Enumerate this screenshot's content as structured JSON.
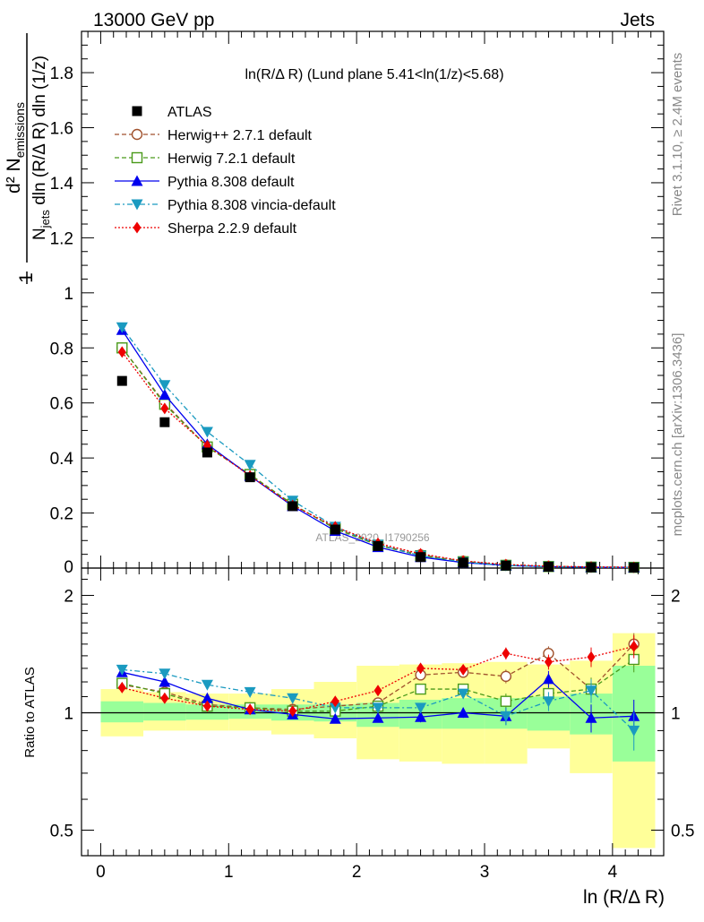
{
  "header": {
    "energy": "13000 GeV pp",
    "channel": "Jets",
    "rivet_label": "Rivet 3.1.10, ≥ 2.4M events",
    "site_label": "mcplots.cern.ch [arXiv:1306.3436]",
    "analysis_id": "ATLAS_2020_I1790256"
  },
  "chart_data": {
    "type": "scatter",
    "plot_title": "ln(R/Δ R) (Lund plane 5.41<ln(1/z)<5.68)",
    "xlabel": "ln (R/Δ R)",
    "ylabel_main": "1/N_jets d²N_emissions / dln(R/ΔR) dln(1/z)",
    "ylabel_ratio": "Ratio to ATLAS",
    "xlim": [
      -0.15,
      4.4
    ],
    "ylim_main": [
      0,
      1.95
    ],
    "ylim_ratio": [
      0.43,
      2.35
    ],
    "y_scale_ratio": "log",
    "x_ticks": [
      "0",
      "1",
      "2",
      "3",
      "4"
    ],
    "y_ticks_main": [
      "0.2",
      "0.4",
      "0.6",
      "0.8",
      "1",
      "1.2",
      "1.4",
      "1.6",
      "1.8"
    ],
    "y_ticks_ratio": [
      "0.5",
      "1",
      "2"
    ],
    "legend_position": "top-left",
    "x": [
      0.167,
      0.5,
      0.833,
      1.167,
      1.5,
      1.833,
      2.167,
      2.5,
      2.833,
      3.167,
      3.5,
      3.833,
      4.167
    ],
    "data": {
      "name": "ATLAS",
      "values": [
        0.68,
        0.53,
        0.42,
        0.33,
        0.225,
        0.14,
        0.08,
        0.04,
        0.02,
        0.009,
        0.005,
        0.003,
        0.002
      ],
      "band_inner": [
        [
          0.945,
          1.07
        ],
        [
          0.955,
          1.06
        ],
        [
          0.96,
          1.05
        ],
        [
          0.965,
          1.05
        ],
        [
          0.955,
          1.05
        ],
        [
          0.95,
          1.05
        ],
        [
          0.92,
          1.06
        ],
        [
          0.91,
          1.08
        ],
        [
          0.91,
          1.09
        ],
        [
          0.91,
          1.09
        ],
        [
          0.9,
          1.1
        ],
        [
          0.88,
          1.12
        ],
        [
          0.75,
          1.32
        ]
      ],
      "band_outer": [
        [
          0.87,
          1.15
        ],
        [
          0.9,
          1.13
        ],
        [
          0.9,
          1.12
        ],
        [
          0.9,
          1.12
        ],
        [
          0.88,
          1.15
        ],
        [
          0.86,
          1.2
        ],
        [
          0.76,
          1.32
        ],
        [
          0.75,
          1.33
        ],
        [
          0.74,
          1.34
        ],
        [
          0.74,
          1.35
        ],
        [
          0.81,
          1.33
        ],
        [
          0.7,
          1.36
        ],
        [
          0.45,
          1.6
        ]
      ]
    },
    "series": [
      {
        "name": "Herwig++ 2.7.1 default",
        "color": "#a0522d",
        "marker": "open-circle",
        "dash": "5,3",
        "main": [
          0.8,
          0.6,
          0.44,
          0.34,
          0.23,
          0.145,
          0.085,
          0.048,
          0.025,
          0.011,
          0.0065,
          0.0035,
          0.0028
        ],
        "ratio": [
          1.18,
          1.13,
          1.05,
          1.03,
          1.02,
          1.04,
          1.06,
          1.25,
          1.27,
          1.24,
          1.42,
          1.15,
          1.5
        ],
        "ratio_err": [
          0.01,
          0.01,
          0.01,
          0.01,
          0.01,
          0.01,
          0.02,
          0.03,
          0.03,
          0.05,
          0.06,
          0.08,
          0.1
        ]
      },
      {
        "name": "Herwig 7.2.1 default",
        "color": "#4a9a1a",
        "marker": "open-square",
        "dash": "5,3",
        "main": [
          0.8,
          0.595,
          0.44,
          0.34,
          0.232,
          0.143,
          0.083,
          0.045,
          0.023,
          0.01,
          0.0056,
          0.0035,
          0.0027
        ],
        "ratio": [
          1.19,
          1.12,
          1.04,
          1.03,
          1.01,
          1.01,
          1.04,
          1.15,
          1.15,
          1.07,
          1.12,
          1.15,
          1.37
        ],
        "ratio_err": [
          0.01,
          0.01,
          0.01,
          0.01,
          0.01,
          0.01,
          0.02,
          0.03,
          0.03,
          0.05,
          0.06,
          0.08,
          0.1
        ]
      },
      {
        "name": "Pythia 8.308 default",
        "color": "#0000ee",
        "marker": "filled-triangle-up",
        "dash": "",
        "main": [
          0.865,
          0.63,
          0.45,
          0.335,
          0.225,
          0.135,
          0.076,
          0.04,
          0.02,
          0.0093,
          0.0052,
          0.003,
          0.0021
        ],
        "ratio": [
          1.27,
          1.2,
          1.09,
          1.02,
          0.99,
          0.965,
          0.97,
          0.975,
          1.0,
          0.98,
          1.22,
          0.97,
          0.98
        ],
        "ratio_err": [
          0.01,
          0.01,
          0.01,
          0.01,
          0.01,
          0.01,
          0.02,
          0.03,
          0.03,
          0.05,
          0.06,
          0.08,
          0.1
        ]
      },
      {
        "name": "Pythia 8.308 vincia-default",
        "color": "#1a9ac0",
        "marker": "filled-triangle-down",
        "dash": "6,3,2,3",
        "main": [
          0.875,
          0.665,
          0.495,
          0.375,
          0.245,
          0.15,
          0.085,
          0.045,
          0.022,
          0.0095,
          0.0053,
          0.0032,
          0.0019
        ],
        "ratio": [
          1.29,
          1.26,
          1.18,
          1.13,
          1.09,
          1.03,
          1.03,
          1.03,
          1.12,
          0.98,
          1.07,
          1.14,
          0.9
        ],
        "ratio_err": [
          0.01,
          0.01,
          0.01,
          0.01,
          0.01,
          0.01,
          0.02,
          0.03,
          0.03,
          0.05,
          0.06,
          0.08,
          0.1
        ]
      },
      {
        "name": "Sherpa 2.2.9 default",
        "color": "#ee0000",
        "marker": "filled-diamond",
        "dash": "2,2",
        "main": [
          0.785,
          0.58,
          0.445,
          0.335,
          0.228,
          0.15,
          0.09,
          0.052,
          0.026,
          0.013,
          0.0068,
          0.0042,
          0.003
        ],
        "ratio": [
          1.16,
          1.09,
          1.04,
          1.02,
          1.01,
          1.07,
          1.14,
          1.3,
          1.29,
          1.42,
          1.35,
          1.39,
          1.48
        ],
        "ratio_err": [
          0.01,
          0.01,
          0.01,
          0.01,
          0.01,
          0.01,
          0.02,
          0.03,
          0.03,
          0.05,
          0.06,
          0.08,
          0.1
        ]
      }
    ]
  }
}
